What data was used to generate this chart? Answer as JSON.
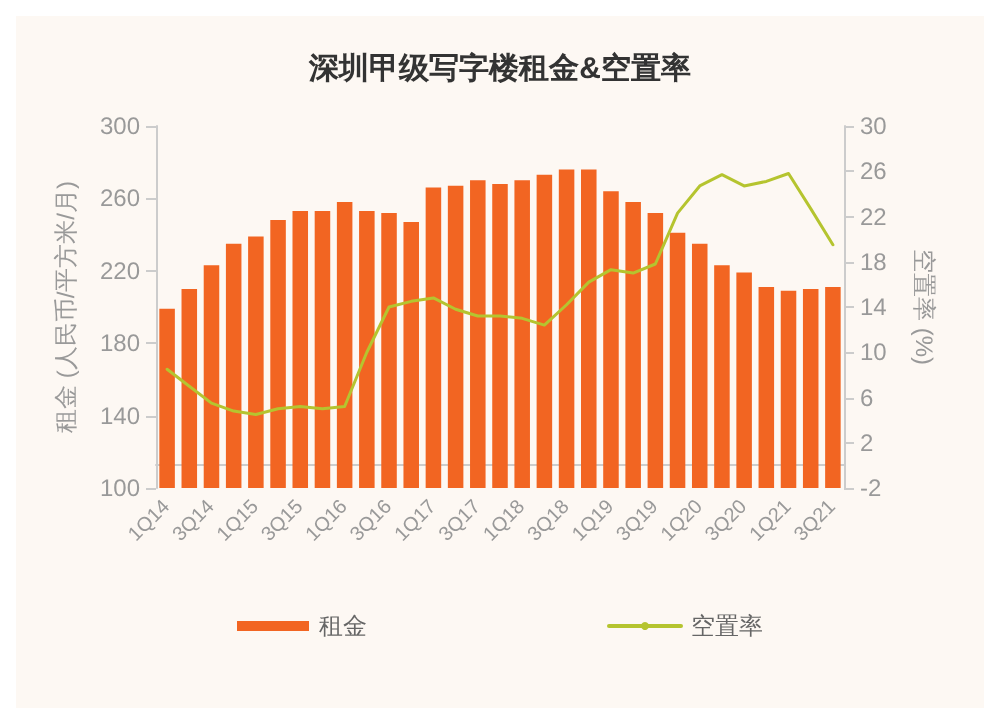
{
  "chart_data": {
    "type": "bar",
    "title": "深圳甲级写字楼租金&空置率",
    "categories": [
      "1Q14",
      null,
      "3Q14",
      null,
      "1Q15",
      null,
      "3Q15",
      null,
      "1Q16",
      null,
      "3Q16",
      null,
      "1Q17",
      null,
      "3Q17",
      null,
      "1Q18",
      null,
      "3Q18",
      null,
      "1Q19",
      null,
      "3Q19",
      null,
      "1Q20",
      null,
      "3Q20",
      null,
      "1Q21",
      null,
      "3Q21"
    ],
    "series": [
      {
        "name": "租金",
        "color": "#f26522",
        "values": [
          199,
          210,
          223,
          235,
          239,
          248,
          253,
          253,
          258,
          253,
          252,
          247,
          266,
          267,
          270,
          268,
          270,
          273,
          276,
          276,
          264,
          258,
          252,
          241,
          235,
          223,
          219,
          211,
          209,
          210,
          211
        ]
      },
      {
        "name": "空置率",
        "type": "line",
        "axis": "y2",
        "color": "#b5c42f",
        "values": [
          8.5,
          7,
          5.5,
          4.8,
          4.5,
          5,
          5.2,
          5,
          5.2,
          10,
          14,
          14.5,
          14.8,
          13.8,
          13.2,
          13.2,
          13,
          12.4,
          14.2,
          16.2,
          17.3,
          17,
          17.8,
          22.3,
          24.7,
          25.7,
          24.7,
          25.1,
          25.8,
          22.7,
          19.5
        ]
      }
    ],
    "ylabel": "租金 (人民币/平方米/月)",
    "y2label": "空置率 (%)",
    "ylim": [
      100,
      300
    ],
    "yticks": [
      100,
      140,
      180,
      220,
      260,
      300
    ],
    "y2lim": [
      -2,
      30
    ],
    "y2ticks": [
      -2,
      2,
      6,
      10,
      14,
      18,
      22,
      26,
      30
    ],
    "grid": false,
    "legend": "bottom",
    "marker": "none",
    "line_style": "solid"
  }
}
